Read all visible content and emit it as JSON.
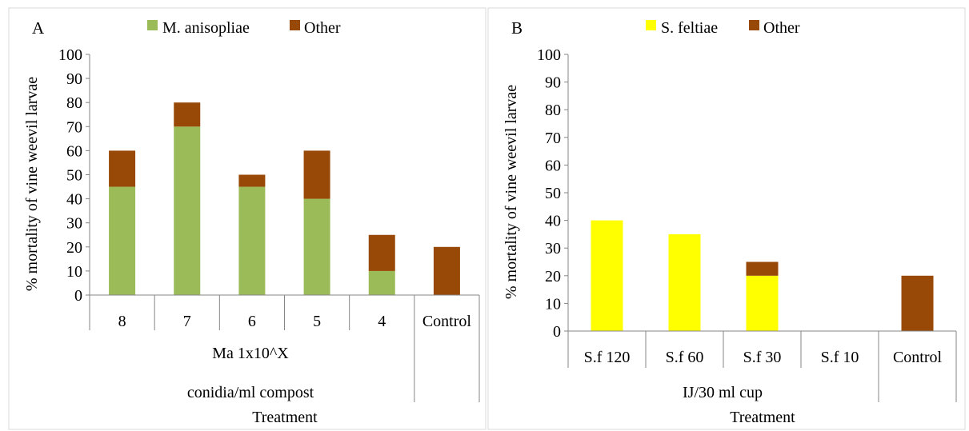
{
  "chart_data": [
    {
      "type": "bar",
      "stacked": true,
      "panel_label": "A",
      "ylabel": "% mortality of vine weevil larvae",
      "ylim": [
        0,
        100
      ],
      "yticks": [
        0,
        10,
        20,
        30,
        40,
        50,
        60,
        70,
        80,
        90,
        100
      ],
      "categories": [
        "8",
        "7",
        "6",
        "5",
        "4",
        "Control"
      ],
      "category_groups": [
        {
          "level": 1,
          "label": "Ma 1x10^X",
          "span": [
            0,
            4
          ]
        },
        {
          "level": 2,
          "label": "conidia/ml compost",
          "span": [
            0,
            4
          ]
        }
      ],
      "xlabel": "Treatment",
      "series": [
        {
          "name": "M. anisopliae",
          "color": "#9bbb59",
          "values": [
            45,
            70,
            45,
            40,
            10,
            0
          ]
        },
        {
          "name": "Other",
          "color": "#984807",
          "values": [
            15,
            10,
            5,
            20,
            15,
            20
          ]
        }
      ],
      "legend": "top",
      "grid": false
    },
    {
      "type": "bar",
      "stacked": true,
      "panel_label": "B",
      "ylabel": "% mortality of vine weevil larvae",
      "ylim": [
        0,
        100
      ],
      "yticks": [
        0,
        10,
        20,
        30,
        40,
        50,
        60,
        70,
        80,
        90,
        100
      ],
      "categories": [
        "S.f 120",
        "S.f 60",
        "S.f 30",
        "S.f 10",
        "Control"
      ],
      "category_groups": [
        {
          "level": 1,
          "label": "IJ/30 ml cup",
          "span": [
            0,
            3
          ]
        }
      ],
      "xlabel": "Treatment",
      "series": [
        {
          "name": "S. feltiae",
          "color": "#ffff00",
          "values": [
            40,
            35,
            20,
            0,
            0
          ]
        },
        {
          "name": "Other",
          "color": "#984807",
          "values": [
            0,
            0,
            5,
            0,
            20
          ]
        }
      ],
      "legend": "top",
      "grid": false
    }
  ]
}
